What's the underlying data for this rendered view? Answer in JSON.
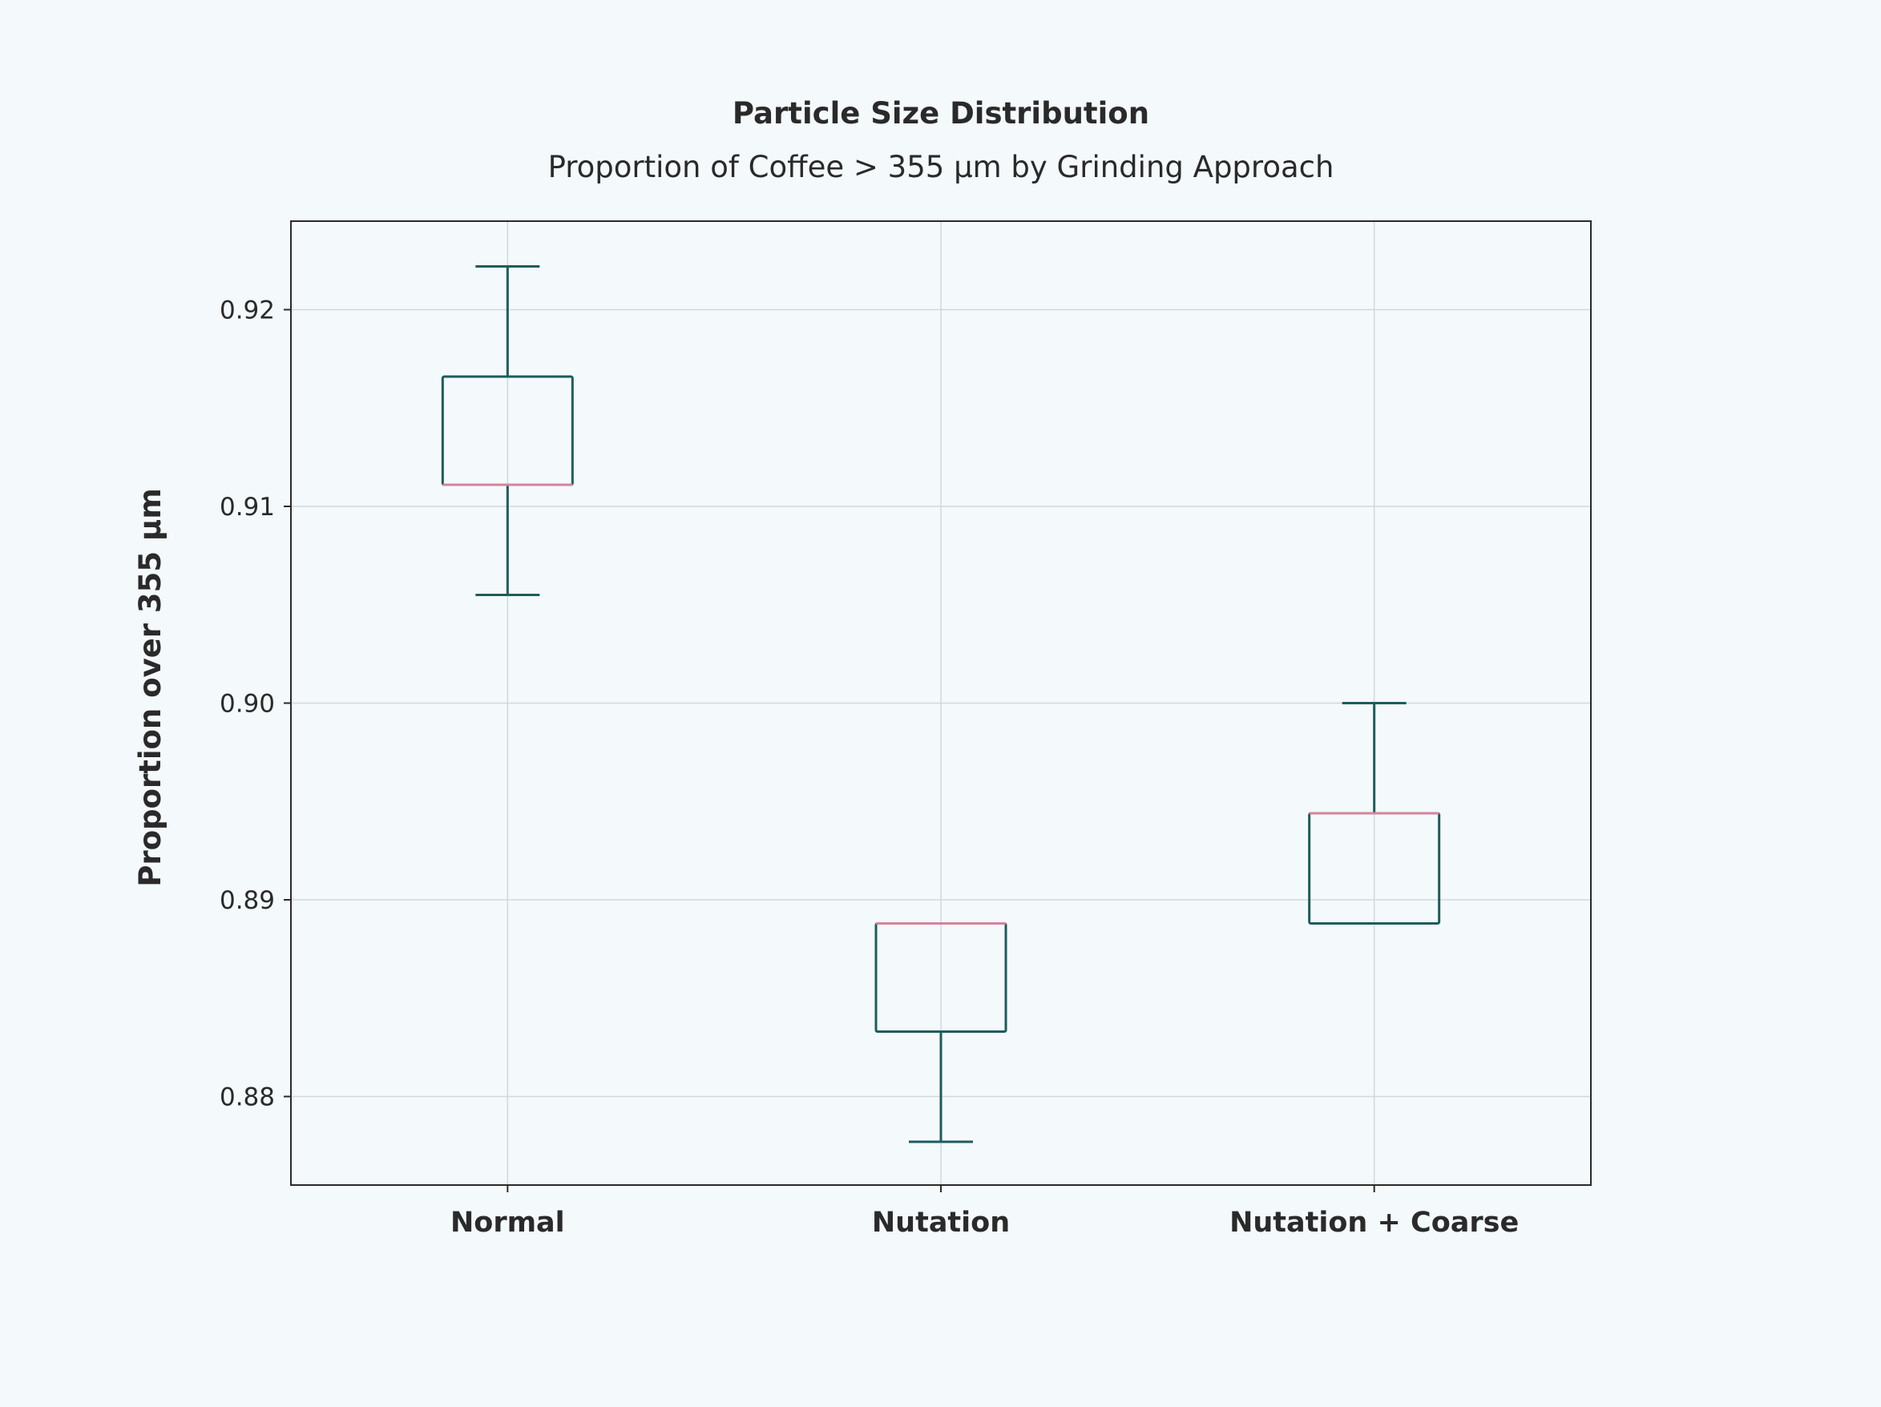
{
  "chart_data": {
    "type": "box",
    "title": "Particle Size Distribution",
    "subtitle": "Proportion of Coffee > 355 μm by Grinding Approach",
    "xlabel": "",
    "ylabel": "Proportion over 355 μm",
    "ylim": [
      0.8755,
      0.9245
    ],
    "yticks": [
      0.88,
      0.89,
      0.9,
      0.91,
      0.92
    ],
    "ytick_labels": [
      "0.88",
      "0.89",
      "0.90",
      "0.91",
      "0.92"
    ],
    "categories": [
      "Normal",
      "Nutation",
      "Nutation + Coarse"
    ],
    "boxes": [
      {
        "category": "Normal",
        "whisker_low": 0.9055,
        "q1": 0.9111,
        "median": 0.9111,
        "q3": 0.9166,
        "whisker_high": 0.9222
      },
      {
        "category": "Nutation",
        "whisker_low": 0.8777,
        "q1": 0.8833,
        "median": 0.8888,
        "q3": 0.8888,
        "whisker_high": 0.8888
      },
      {
        "category": "Nutation + Coarse",
        "whisker_low": 0.8888,
        "q1": 0.8888,
        "median": 0.8944,
        "q3": 0.8944,
        "whisker_high": 0.9
      }
    ],
    "grid": true,
    "colors": {
      "box": "#1e5c5c",
      "median": "#d4849c",
      "background": "#f4f9fc"
    }
  }
}
